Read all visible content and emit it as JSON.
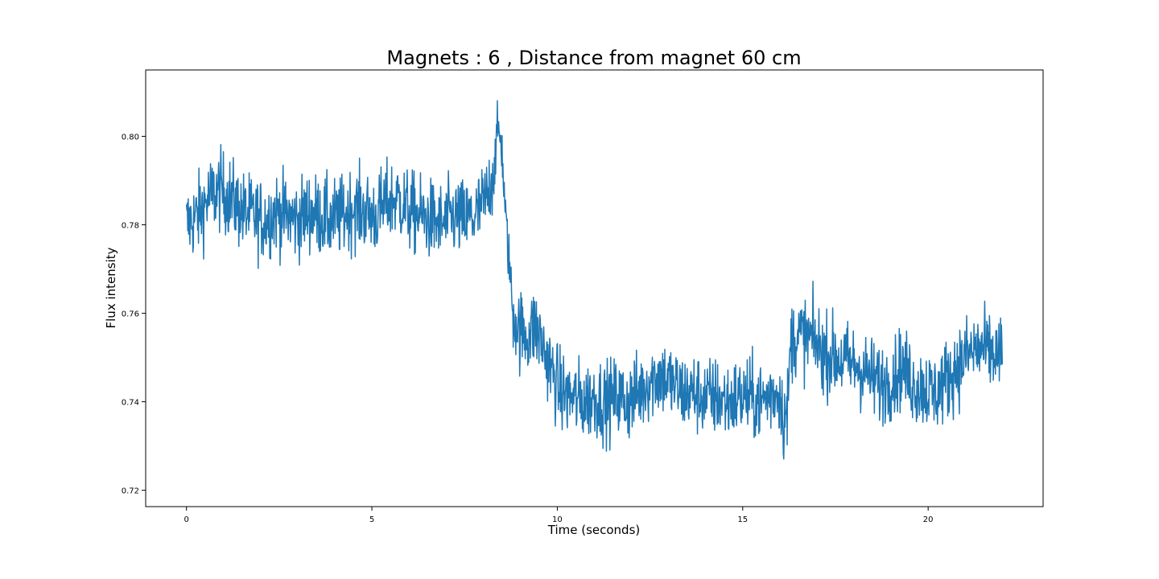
{
  "chart_data": {
    "type": "line",
    "title": "Magnets : 6 , Distance from magnet 60 cm",
    "xlabel": "Time (seconds)",
    "ylabel": "Flux intensity",
    "xlim": [
      -1.1,
      23.1
    ],
    "ylim": [
      0.7163,
      0.815
    ],
    "xticks": [
      0,
      5,
      10,
      15,
      20
    ],
    "xtick_labels": [
      "0",
      "5",
      "10",
      "15",
      "20"
    ],
    "yticks": [
      0.72,
      0.74,
      0.76,
      0.78,
      0.8
    ],
    "ytick_labels": [
      "0.72",
      "0.74",
      "0.76",
      "0.78",
      "0.80"
    ],
    "grid": false,
    "legend": "none",
    "series": [
      {
        "color": "#1f77b4",
        "x": [
          0,
          0.3,
          0.6,
          0.9,
          1.2,
          1.5,
          1.8,
          2.1,
          2.4,
          2.7,
          3.0,
          3.3,
          3.6,
          3.9,
          4.2,
          4.5,
          4.8,
          5.1,
          5.4,
          5.7,
          6.0,
          6.3,
          6.6,
          6.9,
          7.2,
          7.5,
          7.8,
          8.1,
          8.3,
          8.4,
          8.5,
          8.6,
          8.7,
          8.8,
          9.0,
          9.2,
          9.4,
          9.6,
          9.8,
          10.1,
          10.4,
          10.7,
          11.0,
          11.3,
          11.6,
          11.9,
          12.2,
          12.5,
          12.8,
          13.1,
          13.4,
          13.7,
          14.0,
          14.3,
          14.6,
          14.9,
          15.2,
          15.5,
          15.8,
          16.0,
          16.1,
          16.2,
          16.3,
          16.6,
          16.9,
          17.2,
          17.5,
          17.8,
          18.1,
          18.4,
          18.7,
          19.0,
          19.3,
          19.6,
          19.9,
          20.2,
          20.5,
          20.8,
          21.1,
          21.4,
          21.7,
          22.0
        ],
        "y": [
          0.78,
          0.782,
          0.786,
          0.788,
          0.786,
          0.783,
          0.782,
          0.781,
          0.783,
          0.782,
          0.781,
          0.783,
          0.782,
          0.781,
          0.782,
          0.784,
          0.783,
          0.782,
          0.785,
          0.786,
          0.783,
          0.782,
          0.781,
          0.78,
          0.782,
          0.781,
          0.782,
          0.786,
          0.793,
          0.802,
          0.798,
          0.782,
          0.772,
          0.76,
          0.756,
          0.755,
          0.757,
          0.753,
          0.748,
          0.742,
          0.741,
          0.74,
          0.741,
          0.74,
          0.741,
          0.74,
          0.742,
          0.745,
          0.746,
          0.744,
          0.742,
          0.742,
          0.741,
          0.741,
          0.74,
          0.741,
          0.741,
          0.74,
          0.742,
          0.742,
          0.736,
          0.737,
          0.754,
          0.755,
          0.754,
          0.751,
          0.75,
          0.749,
          0.748,
          0.746,
          0.744,
          0.745,
          0.748,
          0.744,
          0.743,
          0.742,
          0.745,
          0.748,
          0.751,
          0.752,
          0.751,
          0.75
        ]
      }
    ]
  }
}
